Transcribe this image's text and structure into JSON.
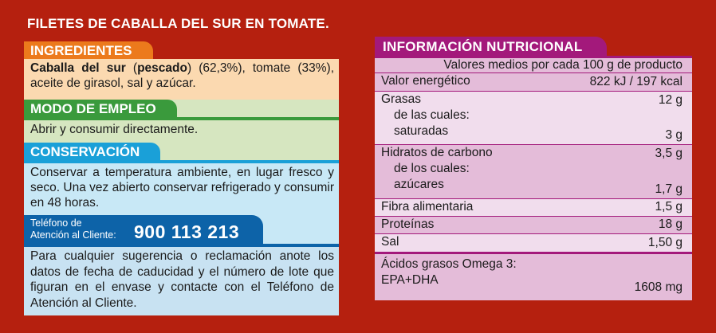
{
  "title": "FILETES DE CABALLA DEL SUR EN TOMATE.",
  "ingredients": {
    "heading": "INGREDIENTES",
    "bold_part": "Caballa del sur",
    "open_paren": " (",
    "fish": "pescado",
    "text": ") (62,3%), tomate (33%), aceite de girasol, sal y azúcar."
  },
  "usage": {
    "heading": "MODO DE EMPLEO",
    "text": "Abrir y consumir directamente."
  },
  "conservation": {
    "heading": "CONSERVACIÓN",
    "text": "Conservar a temperatura ambiente, en lugar fresco y seco. Una vez abierto conservar refrigerado y consumir en 48 horas."
  },
  "customer_service": {
    "label_line1": "Teléfono de",
    "label_line2": "Atención al Cliente:",
    "phone": "900 113 213",
    "text": "Para cualquier sugerencia o reclamación anote los datos de fecha de caducidad y el número de lote que figuran en el envase y contacte con el Teléfono de Atención al Cliente."
  },
  "nutrition": {
    "heading": "INFORMACIÓN NUTRICIONAL",
    "per": "Valores medios por cada 100 g de producto",
    "energy": {
      "label": "Valor energético",
      "value": "822 kJ / 197 kcal"
    },
    "fat": {
      "label": "Grasas",
      "value": "12 g",
      "sub1": "de las cuales:",
      "sub2": "saturadas",
      "sub_value": "3 g"
    },
    "carbs": {
      "label": "Hidratos de carbono",
      "value": "3,5 g",
      "sub1": "de los cuales:",
      "sub2": "azúcares",
      "sub_value": "1,7 g"
    },
    "fiber": {
      "label": "Fibra alimentaria",
      "value": "1,5 g"
    },
    "protein": {
      "label": "Proteínas",
      "value": "18 g"
    },
    "salt": {
      "label": "Sal",
      "value": "1,50 g"
    },
    "omega": {
      "label": "Ácidos grasos Omega 3:",
      "sub": "EPA+DHA",
      "value": "1608 mg"
    }
  }
}
